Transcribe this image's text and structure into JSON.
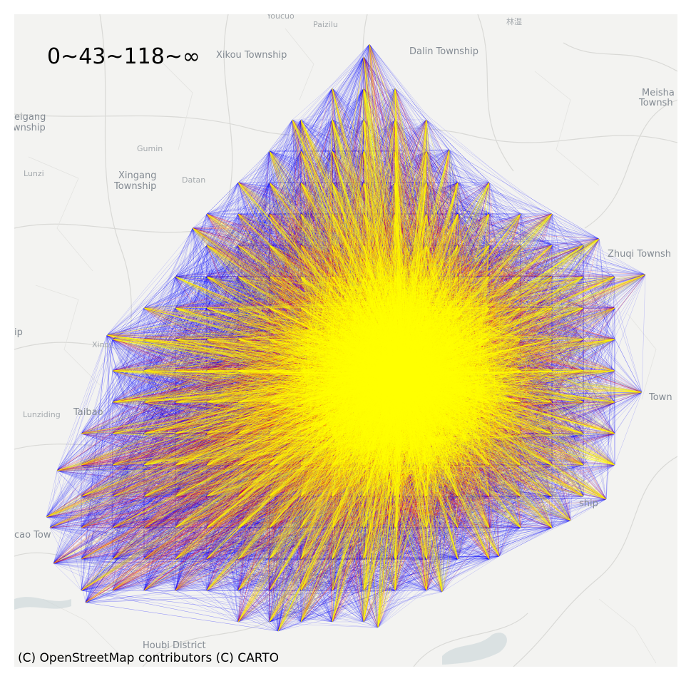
{
  "map": {
    "legend_text": "0~43~118~∞",
    "attribution": "(C) OpenStreetMap contributors (C) CARTO",
    "flow_classes": [
      {
        "range": "0~43",
        "color": "#0000ff"
      },
      {
        "range": "43~118",
        "color": "#ff0000"
      },
      {
        "range": "118~∞",
        "color": "#ffff00"
      }
    ],
    "basemap_colors": {
      "land": "#f3f3f1",
      "road": "#d9d9d6",
      "water": "#cfd8dc"
    },
    "place_labels": {
      "youcuo": "Youcuo",
      "paizilu": "Paizilu",
      "linzhuan": "林湿",
      "xikou": "Xikou Township",
      "dalin": "Dalin Township",
      "meisha1": "Meisha",
      "meisha2": "Townsh",
      "beigang1": "eigang",
      "beigang2": "wnship",
      "gumin": "Gumin",
      "lunzi": "Lunzi",
      "xingang1": "Xingang",
      "xingang2": "Township",
      "datan": "Datan",
      "zhuqi": "Zhuqi Townsh",
      "ip": "ip",
      "xinpi": "Xinpi",
      "town_right": "Town",
      "lunziding": "Lunziding",
      "taibao": "Taibao",
      "ship": "ship",
      "caotown": "cao Tow",
      "houbi": "Houbi District"
    }
  }
}
